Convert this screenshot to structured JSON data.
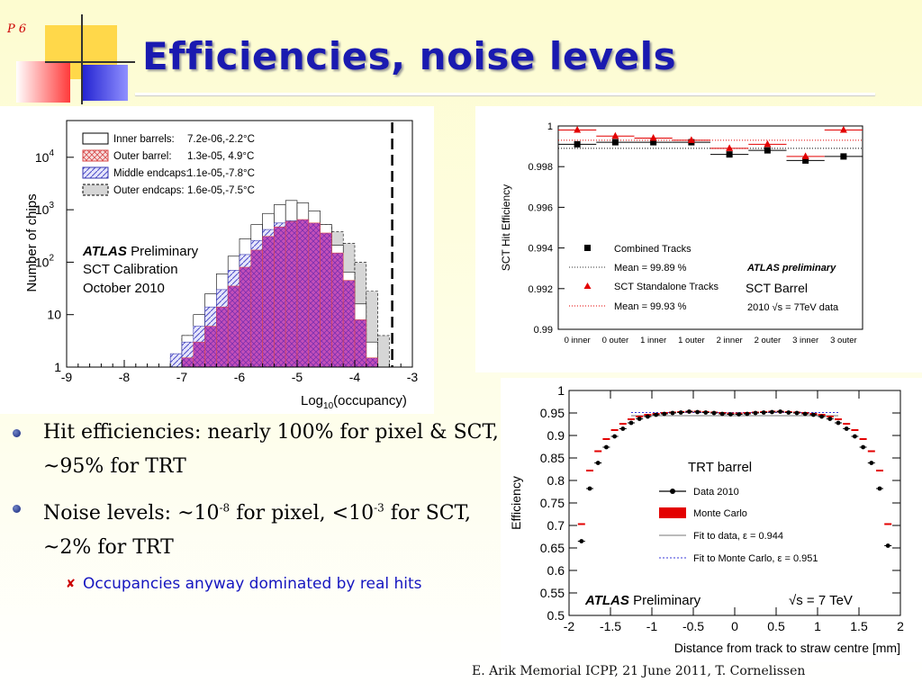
{
  "slide": {
    "number": "P 6",
    "title": "Efficiencies, noise levels",
    "footer": "E. Arik Memorial ICPP, 21 June 2011, T. Cornelissen"
  },
  "bullets": {
    "b1": "Hit efficiencies: nearly 100% for pixel & SCT, ~95% for TRT",
    "b2_pre": "Noise levels: ~10",
    "b2_sup1": "-8",
    "b2_mid": " for pixel, <10",
    "b2_sup2": "-3",
    "b2_post": " for SCT, ~2% for TRT",
    "sub1": "Occupancies anyway dominated by real hits"
  },
  "colors": {
    "title": "#1a1ab0",
    "bullet_sub": "#1515c0",
    "red": "#e30000"
  },
  "chart_data": [
    {
      "id": "noise",
      "type": "histogram",
      "ylabel": "Number of chips",
      "xlabel_pre": "Log",
      "xlabel_sub": "10",
      "xlabel_post": "(occupancy)",
      "xlim": [
        -9,
        -3
      ],
      "ylog": true,
      "ylim_exp": [
        0,
        4.7
      ],
      "x_ticks": [
        "-9",
        "-8",
        "-7",
        "-6",
        "-5",
        "-4",
        "-3"
      ],
      "y_ticks": [
        {
          "base": "1",
          "exp": ""
        },
        {
          "base": "10",
          "exp": ""
        },
        {
          "base": "10",
          "exp": "2"
        },
        {
          "base": "10",
          "exp": "3"
        },
        {
          "base": "10",
          "exp": "4"
        }
      ],
      "legend": [
        {
          "name": "Inner barrels:",
          "value": "7.2e-06,-2.2°C"
        },
        {
          "name": "Outer barrel:",
          "value": "1.3e-05, 4.9°C"
        },
        {
          "name": "Middle endcaps:",
          "value": "1.1e-05,-7.8°C"
        },
        {
          "name": "Outer endcaps:",
          "value": "1.6e-05,-7.5°C"
        }
      ],
      "annotation": {
        "atlas": "ATLAS",
        "prelim": "Preliminary",
        "line2": "SCT Calibration",
        "line3": "October 2010"
      },
      "cut_x": -3.35,
      "series": [
        {
          "key": "outer_endcaps",
          "edges": [
            -7.2,
            -6.4
          ],
          "bins": [
            [
              -7.2,
              -7.0,
              1.5
            ],
            [
              -7.0,
              -6.8,
              4
            ],
            [
              -6.8,
              -6.6,
              7
            ],
            [
              -6.6,
              -6.4,
              6
            ],
            [
              -6.4,
              -6.2,
              15
            ],
            [
              -6.2,
              -6.0,
              30
            ],
            [
              -6.0,
              -5.8,
              70
            ],
            [
              -5.8,
              -5.6,
              130
            ],
            [
              -5.6,
              -5.4,
              200
            ],
            [
              -5.4,
              -5.2,
              300
            ],
            [
              -5.2,
              -5.0,
              420
            ],
            [
              -5.0,
              -4.8,
              560
            ],
            [
              -4.8,
              -4.6,
              600
            ],
            [
              -4.6,
              -4.4,
              520
            ],
            [
              -4.4,
              -4.2,
              380
            ],
            [
              -4.2,
              -4.0,
              230
            ],
            [
              -4.0,
              -3.8,
              100
            ],
            [
              -3.8,
              -3.6,
              28
            ],
            [
              -3.6,
              -3.4,
              4
            ]
          ]
        },
        {
          "key": "inner_barrels",
          "bins": [
            [
              -7.2,
              -7.0,
              1.2
            ],
            [
              -7.0,
              -6.8,
              4
            ],
            [
              -6.8,
              -6.6,
              10
            ],
            [
              -6.6,
              -6.4,
              25
            ],
            [
              -6.4,
              -6.2,
              60
            ],
            [
              -6.2,
              -6.0,
              130
            ],
            [
              -6.0,
              -5.8,
              280
            ],
            [
              -5.8,
              -5.6,
              520
            ],
            [
              -5.6,
              -5.4,
              850
            ],
            [
              -5.4,
              -5.2,
              1250
            ],
            [
              -5.2,
              -5.0,
              1500
            ],
            [
              -5.0,
              -4.8,
              1350
            ],
            [
              -4.8,
              -4.6,
              950
            ],
            [
              -4.6,
              -4.4,
              520
            ],
            [
              -4.4,
              -4.2,
              210
            ],
            [
              -4.2,
              -4.0,
              65
            ],
            [
              -4.0,
              -3.8,
              16
            ],
            [
              -3.8,
              -3.6,
              3
            ]
          ]
        },
        {
          "key": "middle_endcaps",
          "bins": [
            [
              -7.2,
              -7.0,
              1.8
            ],
            [
              -7.0,
              -6.8,
              3
            ],
            [
              -6.8,
              -6.6,
              6
            ],
            [
              -6.6,
              -6.4,
              14
            ],
            [
              -6.4,
              -6.2,
              30
            ],
            [
              -6.2,
              -6.0,
              70
            ],
            [
              -6.0,
              -5.8,
              140
            ],
            [
              -5.8,
              -5.6,
              260
            ],
            [
              -5.6,
              -5.4,
              420
            ],
            [
              -5.4,
              -5.2,
              560
            ],
            [
              -5.2,
              -5.0,
              620
            ],
            [
              -5.0,
              -4.8,
              540
            ],
            [
              -4.8,
              -4.6,
              360
            ],
            [
              -4.6,
              -4.4,
              180
            ],
            [
              -4.4,
              -4.2,
              70
            ],
            [
              -4.2,
              -4.0,
              22
            ],
            [
              -4.0,
              -3.8,
              5
            ]
          ]
        },
        {
          "key": "outer_barrel",
          "bins": [
            [
              -7.0,
              -6.8,
              1.5
            ],
            [
              -6.8,
              -6.6,
              3
            ],
            [
              -6.6,
              -6.4,
              6
            ],
            [
              -6.4,
              -6.2,
              14
            ],
            [
              -6.2,
              -6.0,
              35
            ],
            [
              -6.0,
              -5.8,
              80
            ],
            [
              -5.8,
              -5.6,
              170
            ],
            [
              -5.6,
              -5.4,
              310
            ],
            [
              -5.4,
              -5.2,
              470
            ],
            [
              -5.2,
              -5.0,
              600
            ],
            [
              -5.0,
              -4.8,
              650
            ],
            [
              -4.8,
              -4.6,
              560
            ],
            [
              -4.6,
              -4.4,
              360
            ],
            [
              -4.4,
              -4.2,
              150
            ],
            [
              -4.2,
              -4.0,
              45
            ],
            [
              -4.0,
              -3.8,
              8
            ],
            [
              -3.8,
              -3.6,
              1.5
            ]
          ]
        }
      ]
    },
    {
      "id": "sct",
      "type": "scatter",
      "ylabel": "SCT Hit Efficiency",
      "ylim": [
        0.99,
        1.0
      ],
      "y_ticks": [
        "0.99",
        "0.992",
        "0.994",
        "0.996",
        "0.998",
        "1"
      ],
      "categories": [
        "0 inner",
        "0 outer",
        "1 inner",
        "1 outer",
        "2 inner",
        "2 outer",
        "3 inner",
        "3 outer"
      ],
      "series": [
        {
          "name": "Combined Tracks",
          "values": [
            0.9991,
            0.9992,
            0.9992,
            0.9992,
            0.9986,
            0.9988,
            0.9983,
            0.9985
          ],
          "mean": 0.9989,
          "color": "#000000"
        },
        {
          "name": "SCT Standalone Tracks",
          "values": [
            0.9998,
            0.9995,
            0.9994,
            0.9993,
            0.9989,
            0.9991,
            0.9985,
            0.9998
          ],
          "mean": 0.9993,
          "color": "#e30000"
        }
      ],
      "legend_means": [
        "Mean = 99.89 %",
        "Mean = 99.93 %"
      ],
      "annotation": {
        "atlas": "ATLAS preliminary",
        "title": "SCT Barrel",
        "data_pre": "2010 ",
        "data_sqrt": "√s",
        "data_post": " = 7TeV data"
      }
    },
    {
      "id": "trt",
      "type": "scatter",
      "title": "TRT barrel",
      "ylabel": "Efficiency",
      "xlabel": "Distance from track to straw centre  [mm]",
      "xlim": [
        -2,
        2
      ],
      "ylim": [
        0.5,
        1.0
      ],
      "x_ticks": [
        "-2",
        "-1.5",
        "-1",
        "-0.5",
        "0",
        "0.5",
        "1",
        "1.5",
        "2"
      ],
      "y_ticks": [
        "0.5",
        "0.55",
        "0.6",
        "0.65",
        "0.7",
        "0.75",
        "0.8",
        "0.85",
        "0.9",
        "0.95",
        "1"
      ],
      "data": {
        "x": [
          -1.85,
          -1.75,
          -1.65,
          -1.55,
          -1.45,
          -1.35,
          -1.25,
          -1.15,
          -1.05,
          -0.95,
          -0.85,
          -0.75,
          -0.65,
          -0.55,
          -0.45,
          -0.35,
          -0.25,
          -0.15,
          -0.05,
          0.05,
          0.15,
          0.25,
          0.35,
          0.45,
          0.55,
          0.65,
          0.75,
          0.85,
          0.95,
          1.05,
          1.15,
          1.25,
          1.35,
          1.45,
          1.55,
          1.65,
          1.75,
          1.85
        ],
        "y": [
          0.665,
          0.782,
          0.839,
          0.874,
          0.898,
          0.915,
          0.928,
          0.937,
          0.942,
          0.946,
          0.948,
          0.95,
          0.951,
          0.953,
          0.952,
          0.951,
          0.95,
          0.948,
          0.947,
          0.947,
          0.948,
          0.95,
          0.951,
          0.952,
          0.953,
          0.951,
          0.95,
          0.948,
          0.946,
          0.942,
          0.937,
          0.928,
          0.915,
          0.898,
          0.874,
          0.839,
          0.782,
          0.655
        ]
      },
      "mc": {
        "x": [
          -1.85,
          -1.75,
          -1.65,
          -1.55,
          -1.45,
          -1.35,
          -1.25,
          -1.15,
          -1.05,
          -0.95,
          -0.85,
          -0.75,
          -0.65,
          -0.55,
          -0.45,
          -0.35,
          -0.25,
          -0.15,
          -0.05,
          0.05,
          0.15,
          0.25,
          0.35,
          0.45,
          0.55,
          0.65,
          0.75,
          0.85,
          0.95,
          1.05,
          1.15,
          1.25,
          1.35,
          1.45,
          1.55,
          1.65,
          1.75,
          1.85
        ],
        "y": [
          0.703,
          0.822,
          0.865,
          0.892,
          0.912,
          0.926,
          0.936,
          0.942,
          0.946,
          0.948,
          0.95,
          0.951,
          0.952,
          0.953,
          0.953,
          0.952,
          0.951,
          0.95,
          0.949,
          0.949,
          0.95,
          0.951,
          0.952,
          0.953,
          0.953,
          0.952,
          0.951,
          0.95,
          0.948,
          0.946,
          0.942,
          0.936,
          0.926,
          0.912,
          0.892,
          0.865,
          0.822,
          0.703
        ]
      },
      "fit_data_y": 0.944,
      "fit_mc_y": 0.951,
      "legend": [
        "Data 2010",
        "Monte Carlo",
        "Fit to data,  ε = 0.944",
        "Fit to Monte Carlo,  ε = 0.951"
      ],
      "annotation": {
        "atlas": "ATLAS",
        "prelim": "Preliminary",
        "energy": "√s = 7 TeV"
      }
    }
  ]
}
